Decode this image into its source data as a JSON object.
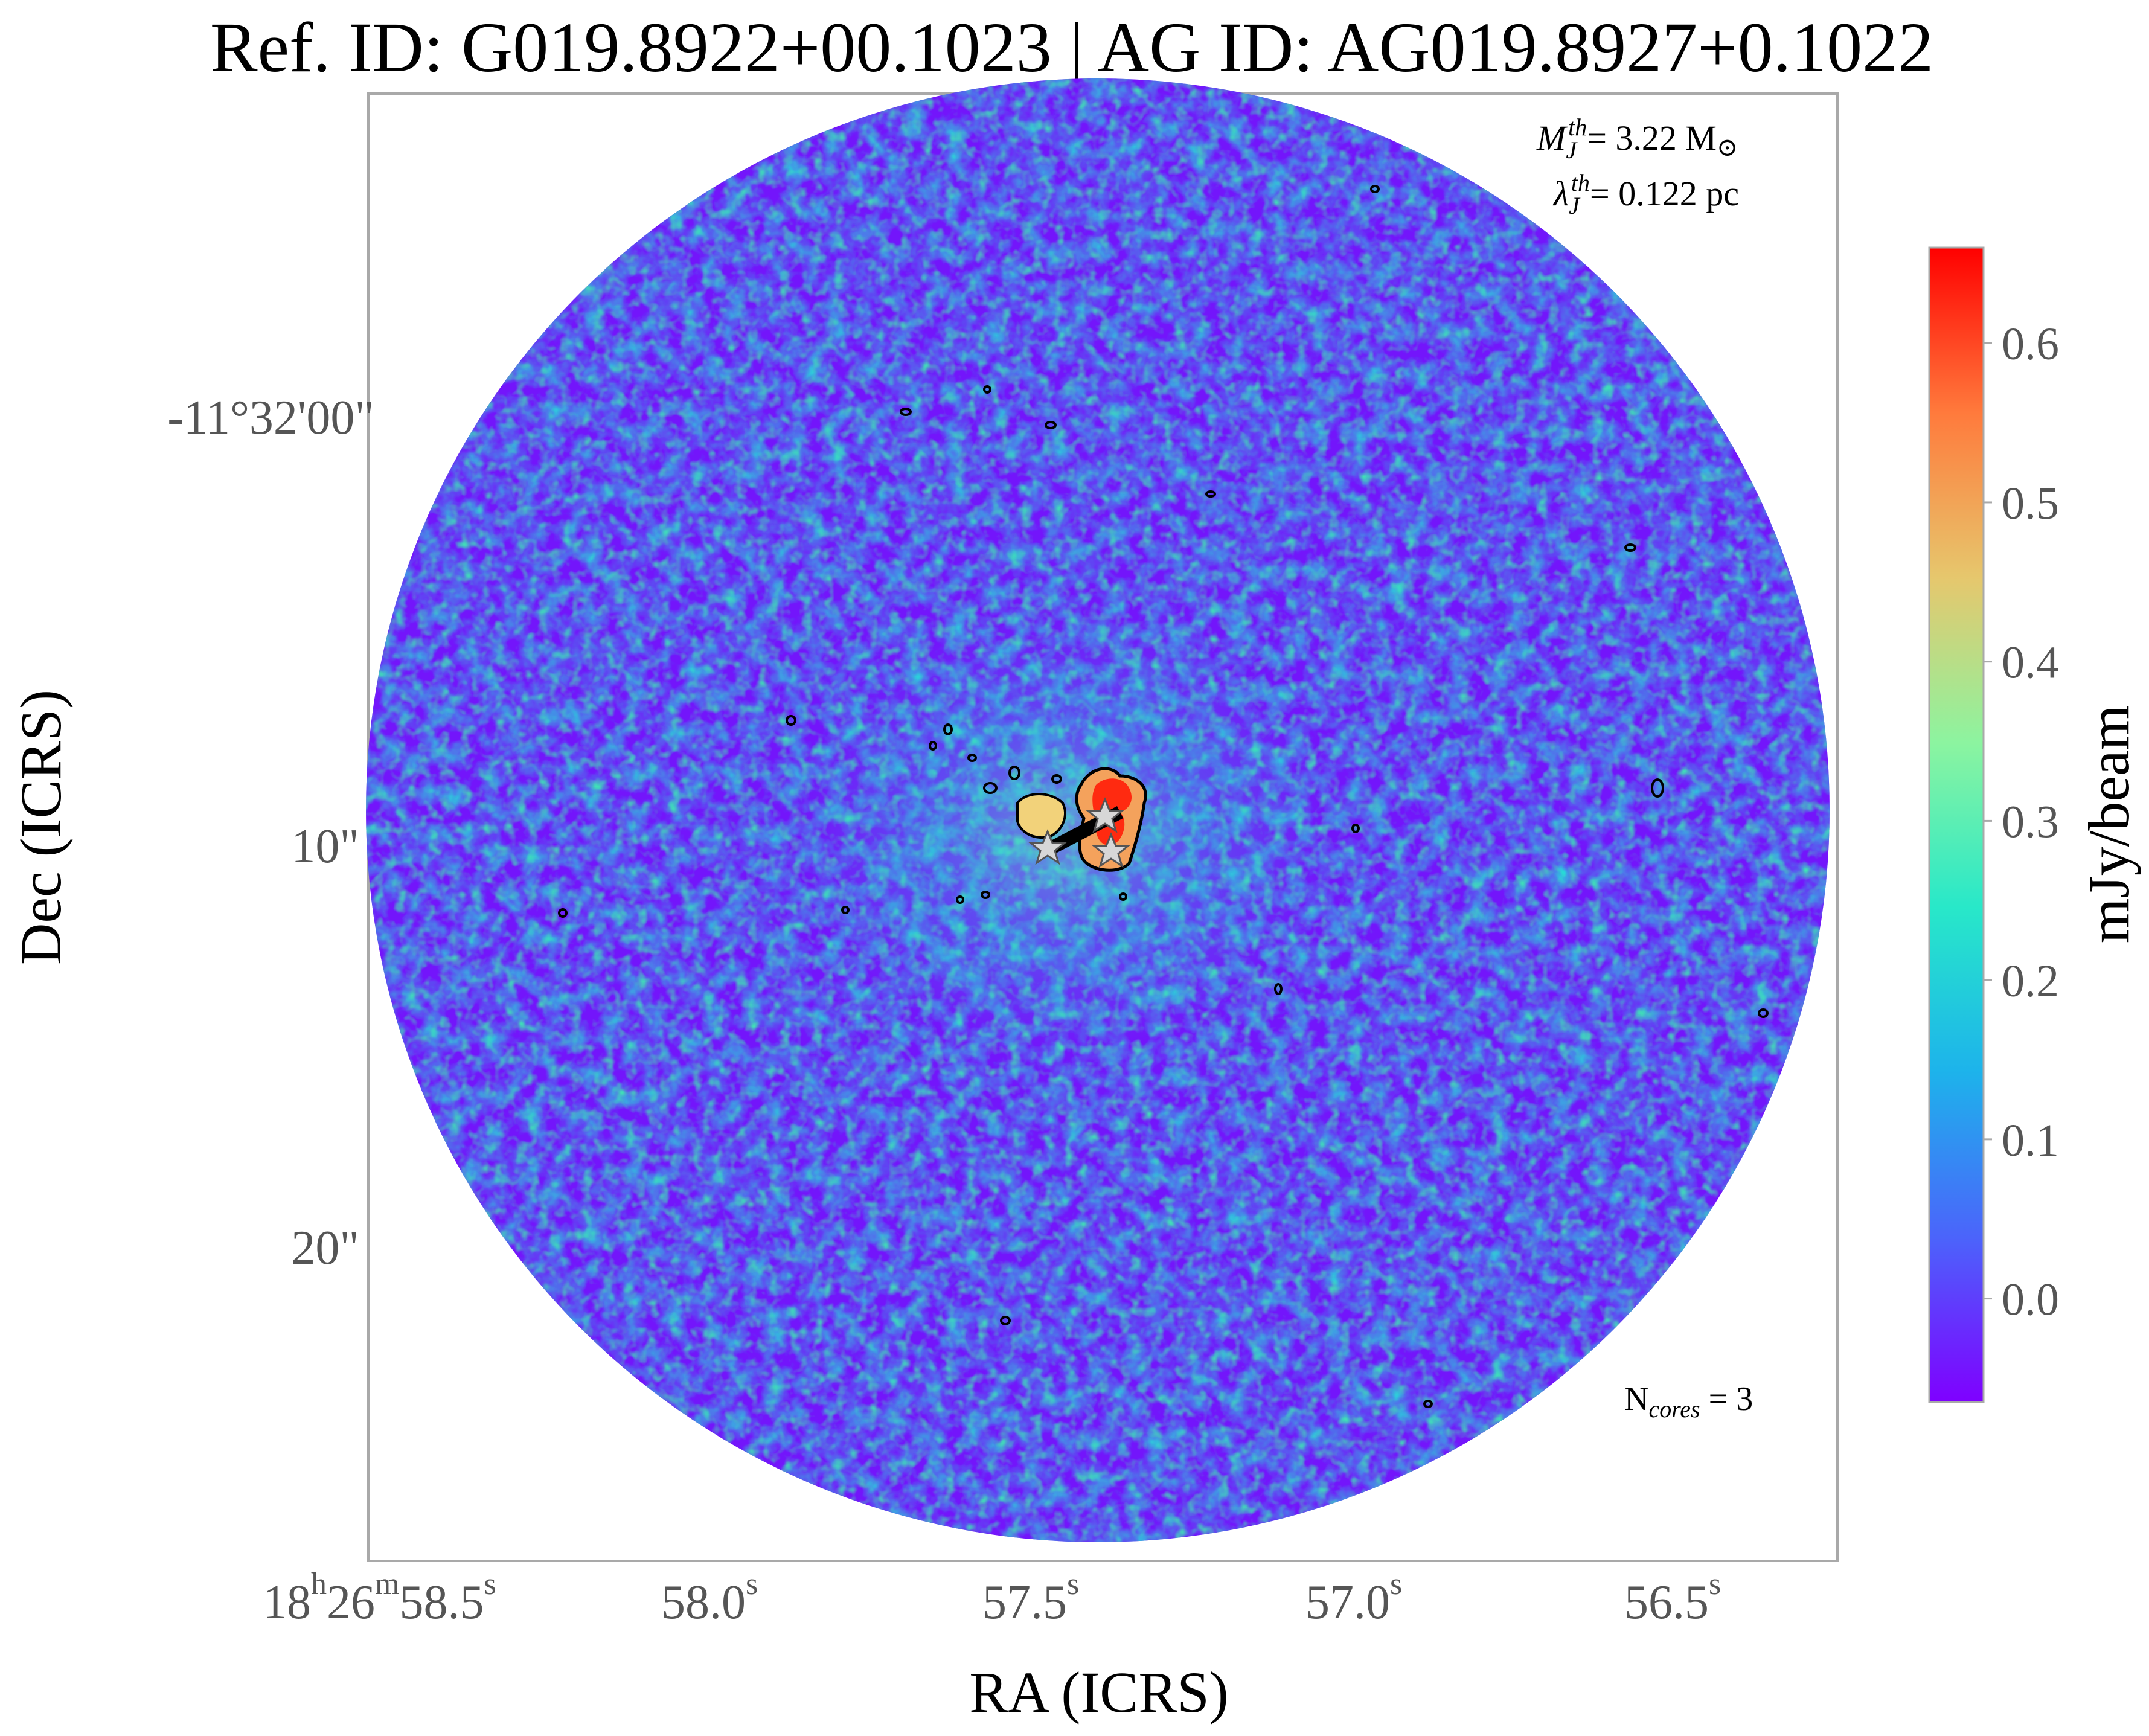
{
  "chart_data": {
    "type": "heatmap",
    "title": "Ref. ID: G019.8922+00.1023 | AG ID: AG019.8927+0.1022",
    "xlabel": "RA (ICRS)",
    "ylabel": "Dec (ICRS)",
    "x_ticks": [
      {
        "base": "18",
        "sup1": "h",
        "mid": "26",
        "sup2": "m",
        "tail": "58.5",
        "sup3": "s"
      },
      {
        "tail": "58.0",
        "sup3": "s"
      },
      {
        "tail": "57.5",
        "sup3": "s"
      },
      {
        "tail": "57.0",
        "sup3": "s"
      },
      {
        "tail": "56.5",
        "sup3": "s"
      }
    ],
    "y_ticks": [
      "-11°32'00\"",
      "10\"",
      "20\""
    ],
    "grid": false,
    "colorbar": {
      "label": "mJy/beam",
      "ticks": [
        "0.0",
        "0.1",
        "0.2",
        "0.3",
        "0.4",
        "0.5",
        "0.6"
      ],
      "tick_values": [
        0.0,
        0.1,
        0.2,
        0.3,
        0.4,
        0.5,
        0.6
      ],
      "range": [
        -0.065,
        0.66
      ],
      "colormap": [
        "#7f00ff",
        "#4b64fb",
        "#1db3eb",
        "#28e8c9",
        "#8cf4a0",
        "#e6c76d",
        "#ff7a3c",
        "#ff0000"
      ]
    },
    "annotations": {
      "mass_symbol": "M",
      "mass_sub": "J",
      "mass_sup": "th",
      "mass_value": "= 3.22 M",
      "mass_sun": "⊙",
      "lambda_symbol": "λ",
      "lambda_sub": "J",
      "lambda_sup": "th",
      "lambda_value": "= 0.122 pc",
      "ncores_prefix": "N",
      "ncores_sub": "cores",
      "ncores_value": " = 3"
    },
    "cores": [
      {
        "ra_s": 57.36,
        "dec_offset_arcsec": 9.5
      },
      {
        "ra_s": 57.46,
        "dec_offset_arcsec": 10.3
      },
      {
        "ra_s": 57.33,
        "dec_offset_arcsec": 10.3
      }
    ]
  }
}
